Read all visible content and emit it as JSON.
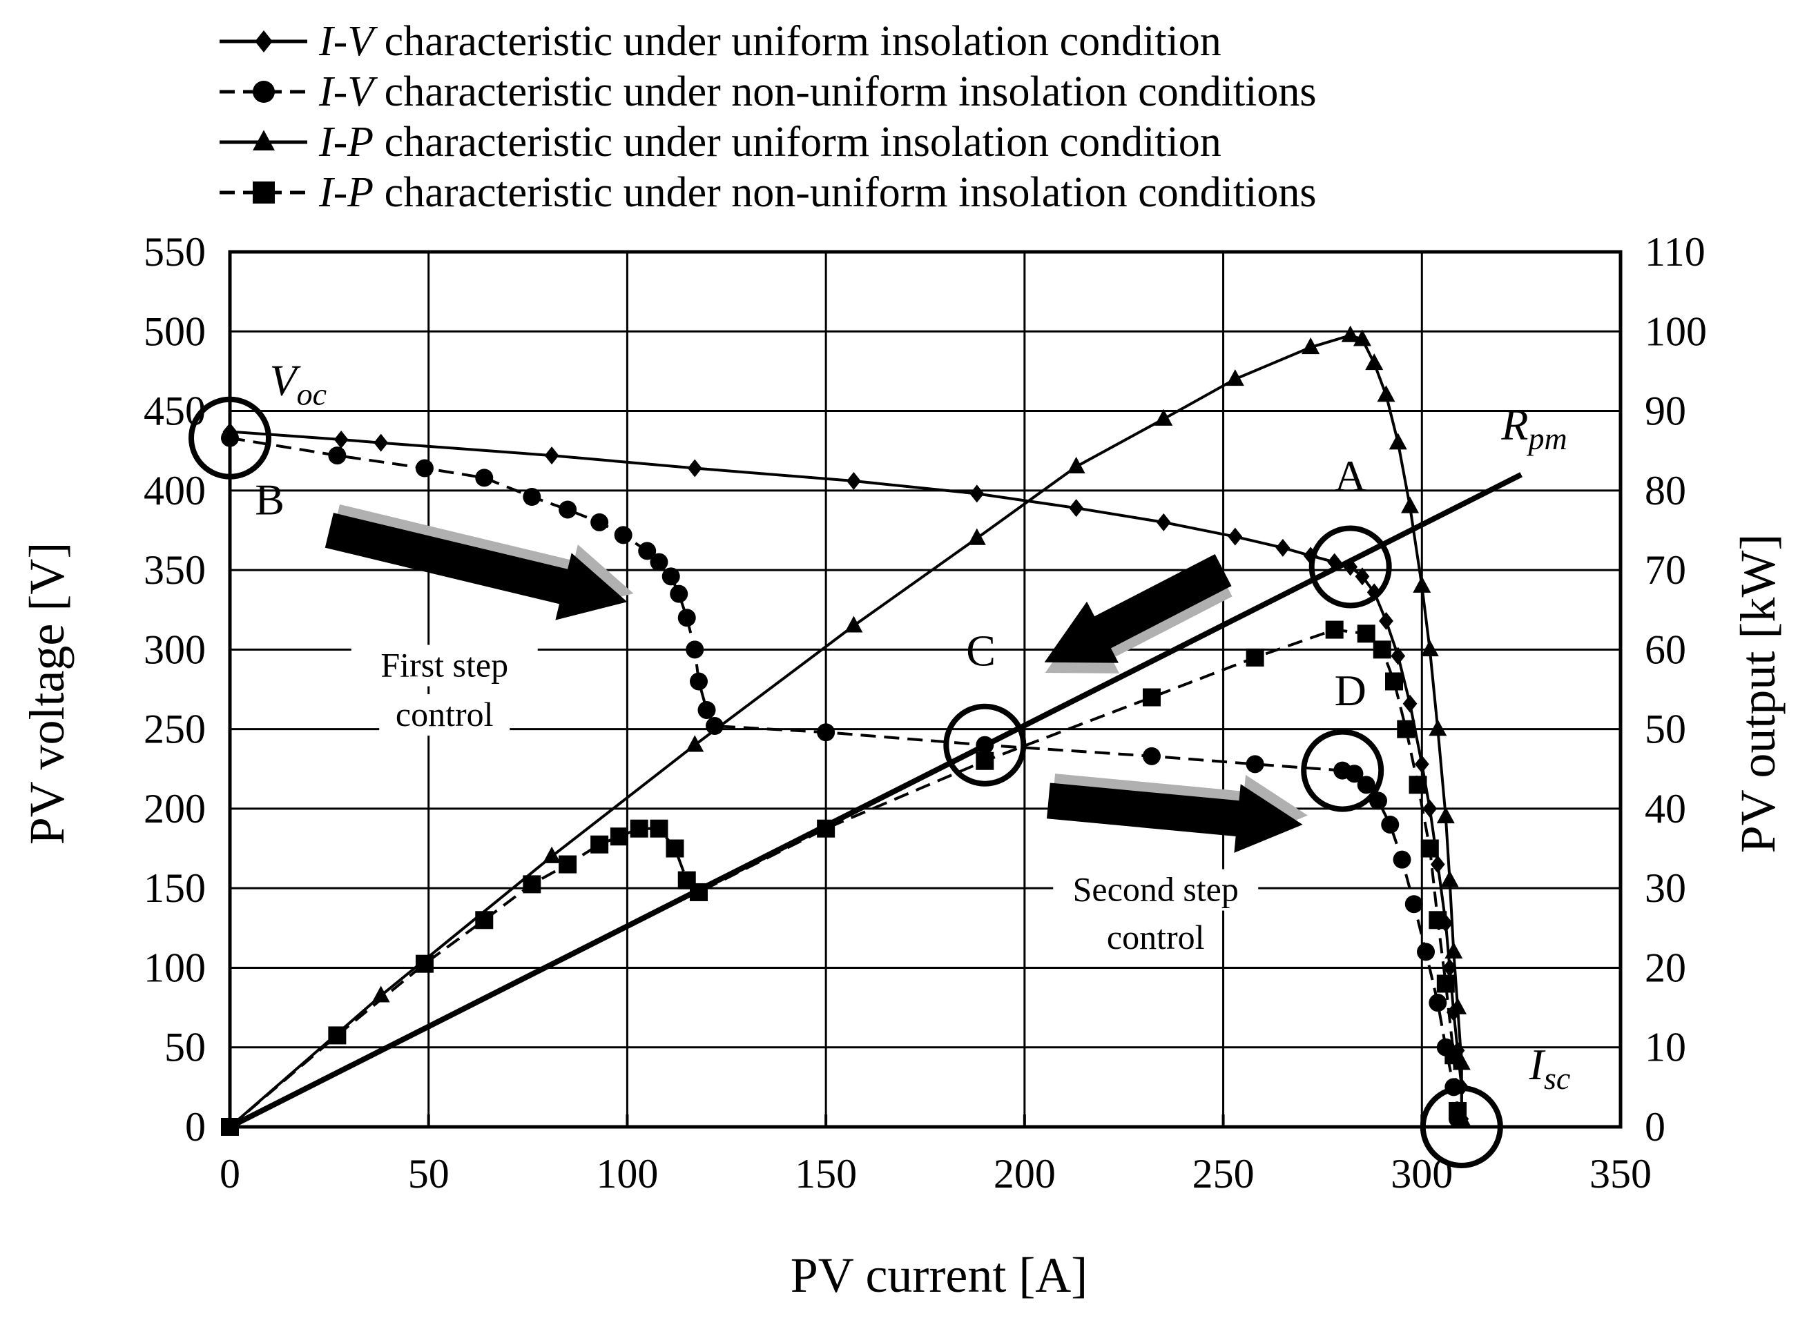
{
  "chart_data": {
    "type": "line",
    "xlabel": "PV current  [A]",
    "ylabel_left": "PV voltage  [V]",
    "ylabel_right": "PV output  [kW]",
    "xlim": [
      0,
      350
    ],
    "ylim_left": [
      0,
      550
    ],
    "ylim_right": [
      0,
      110
    ],
    "x_ticks": [
      0,
      50,
      100,
      150,
      200,
      250,
      300,
      350
    ],
    "y_left_ticks": [
      0,
      50,
      100,
      150,
      200,
      250,
      300,
      350,
      400,
      450,
      500,
      550
    ],
    "y_right_ticks": [
      0,
      10,
      20,
      30,
      40,
      50,
      60,
      70,
      80,
      90,
      100,
      110
    ],
    "grid": true,
    "legend_position": "top",
    "legend": [
      {
        "prefix": "I-V",
        "text": " characteristic under uniform insolation condition",
        "marker": "diamond"
      },
      {
        "prefix": "I-V",
        "text": " characteristic under non-uniform insolation conditions",
        "marker": "circle"
      },
      {
        "prefix": "I-P",
        "text": " characteristic under uniform insolation condition",
        "marker": "triangle"
      },
      {
        "prefix": "I-P",
        "text": " characteristic under non-uniform insolation conditions",
        "marker": "square"
      }
    ],
    "series": [
      {
        "marker": "diamond",
        "axis": "left",
        "dash": false,
        "points": [
          [
            0,
            437
          ],
          [
            28,
            432
          ],
          [
            38,
            430
          ],
          [
            81,
            422
          ],
          [
            117,
            414
          ],
          [
            157,
            406
          ],
          [
            188,
            398
          ],
          [
            213,
            389
          ],
          [
            235,
            380
          ],
          [
            253,
            371
          ],
          [
            265,
            364
          ],
          [
            272,
            359
          ],
          [
            278,
            355
          ],
          [
            282,
            352
          ],
          [
            285,
            346
          ],
          [
            288,
            336
          ],
          [
            291,
            318
          ],
          [
            294,
            296
          ],
          [
            297,
            266
          ],
          [
            300,
            228
          ],
          [
            302,
            200
          ],
          [
            304,
            165
          ],
          [
            306,
            128
          ],
          [
            307,
            100
          ],
          [
            308,
            72
          ],
          [
            309,
            48
          ],
          [
            310,
            25
          ],
          [
            310,
            5
          ]
        ]
      },
      {
        "marker": "circle",
        "axis": "left",
        "dash": true,
        "points": [
          [
            0,
            433
          ],
          [
            27,
            422
          ],
          [
            49,
            414
          ],
          [
            64,
            408
          ],
          [
            76,
            396
          ],
          [
            85,
            388
          ],
          [
            93,
            380
          ],
          [
            99,
            372
          ],
          [
            105,
            362
          ],
          [
            108,
            355
          ],
          [
            111,
            346
          ],
          [
            113,
            335
          ],
          [
            115,
            320
          ],
          [
            117,
            300
          ],
          [
            118,
            280
          ],
          [
            120,
            262
          ],
          [
            122,
            252
          ],
          [
            150,
            248
          ],
          [
            190,
            240
          ],
          [
            232,
            233
          ],
          [
            258,
            228
          ],
          [
            280,
            224
          ],
          [
            283,
            222
          ],
          [
            286,
            215
          ],
          [
            289,
            205
          ],
          [
            292,
            190
          ],
          [
            295,
            168
          ],
          [
            298,
            140
          ],
          [
            301,
            110
          ],
          [
            304,
            78
          ],
          [
            306,
            50
          ],
          [
            308,
            25
          ],
          [
            309,
            5
          ]
        ]
      },
      {
        "marker": "triangle",
        "axis": "right",
        "dash": false,
        "points": [
          [
            0,
            0
          ],
          [
            38,
            16.5
          ],
          [
            81,
            34
          ],
          [
            117,
            48
          ],
          [
            157,
            63
          ],
          [
            188,
            74
          ],
          [
            213,
            83
          ],
          [
            235,
            89
          ],
          [
            253,
            94
          ],
          [
            272,
            98
          ],
          [
            282,
            99.5
          ],
          [
            285,
            99
          ],
          [
            288,
            96
          ],
          [
            291,
            92
          ],
          [
            294,
            86
          ],
          [
            297,
            78
          ],
          [
            300,
            68
          ],
          [
            302,
            60
          ],
          [
            304,
            50
          ],
          [
            306,
            39
          ],
          [
            307,
            31
          ],
          [
            308,
            22
          ],
          [
            309,
            15
          ],
          [
            310,
            8
          ],
          [
            310,
            1
          ]
        ]
      },
      {
        "marker": "square",
        "axis": "right",
        "dash": true,
        "points": [
          [
            0,
            0
          ],
          [
            27,
            11.5
          ],
          [
            49,
            20.5
          ],
          [
            64,
            26
          ],
          [
            76,
            30.5
          ],
          [
            85,
            33
          ],
          [
            93,
            35.5
          ],
          [
            98,
            36.5
          ],
          [
            103,
            37.5
          ],
          [
            108,
            37.5
          ],
          [
            112,
            35
          ],
          [
            115,
            31
          ],
          [
            118,
            29.5
          ],
          [
            150,
            37.5
          ],
          [
            190,
            46
          ],
          [
            232,
            54
          ],
          [
            258,
            59
          ],
          [
            278,
            62.5
          ],
          [
            286,
            62
          ],
          [
            290,
            60
          ],
          [
            293,
            56
          ],
          [
            296,
            50
          ],
          [
            299,
            43
          ],
          [
            302,
            35
          ],
          [
            304,
            26
          ],
          [
            306,
            18
          ],
          [
            308,
            9
          ],
          [
            309,
            2
          ]
        ]
      }
    ],
    "rpm_line": {
      "from": [
        0,
        0
      ],
      "to": [
        325,
        410
      ]
    },
    "annotations": [
      {
        "text": "A",
        "x": 282,
        "y": 400
      },
      {
        "text": "B",
        "x": 10,
        "y": 385
      },
      {
        "text": "C",
        "x": 189,
        "y": 290
      },
      {
        "text": "D",
        "x": 282,
        "y": 265
      },
      {
        "text": "First step",
        "x": 54,
        "y": 283
      },
      {
        "text": "control",
        "x": 54,
        "y": 252
      },
      {
        "text": "Second step",
        "x": 233,
        "y": 142
      },
      {
        "text": "control",
        "x": 233,
        "y": 112
      }
    ],
    "italic_annotations": [
      {
        "text": "V",
        "sub": "oc",
        "x": 10,
        "y": 460
      },
      {
        "text": "R",
        "sub": "pm",
        "x": 320,
        "y": 432
      },
      {
        "text": "I",
        "sub": "sc",
        "x": 327,
        "y": 30
      }
    ],
    "circles": [
      {
        "x": 0,
        "y": 433
      },
      {
        "x": 282,
        "y": 352
      },
      {
        "x": 190,
        "y": 240
      },
      {
        "x": 280,
        "y": 224
      },
      {
        "x": 310,
        "y": 0
      }
    ],
    "arrows": [
      {
        "from": [
          25,
          375
        ],
        "to": [
          100,
          330
        ],
        "shading": "grey"
      },
      {
        "from": [
          250,
          350
        ],
        "to": [
          205,
          292
        ],
        "shading": "grey"
      },
      {
        "from": [
          206,
          205
        ],
        "to": [
          270,
          190
        ],
        "shading": "grey"
      }
    ]
  }
}
